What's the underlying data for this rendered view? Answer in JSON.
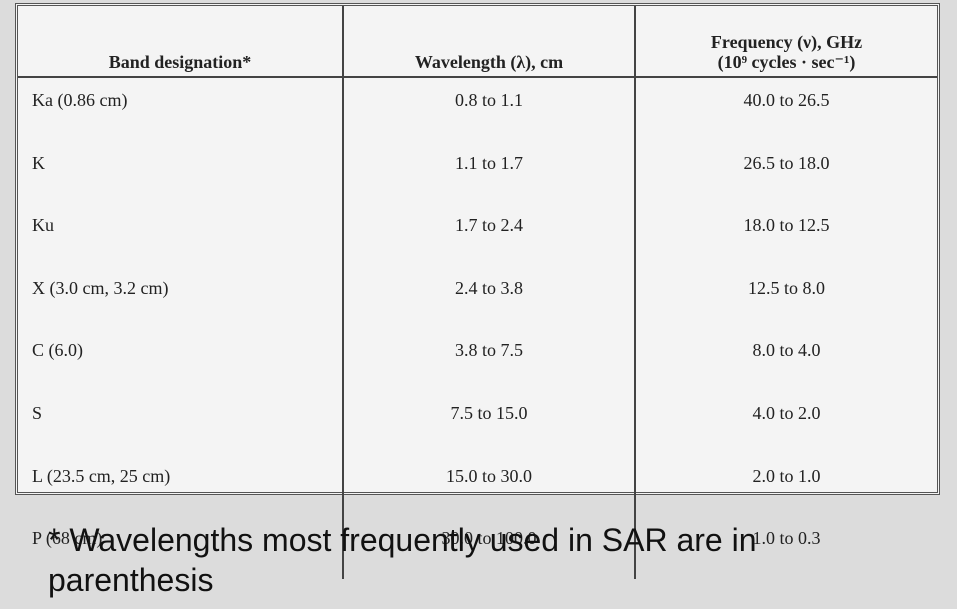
{
  "table": {
    "headers": {
      "band": "Band designation*",
      "wavelength": "Wavelength (λ), cm",
      "frequency_line1": "Frequency (ν), GHz",
      "frequency_line2": "(10⁹ cycles · sec⁻¹)"
    },
    "rows": [
      {
        "band": "Ka (0.86 cm)",
        "wavelength": "0.8 to 1.1",
        "frequency": "40.0 to 26.5"
      },
      {
        "band": "K",
        "wavelength": "1.1 to 1.7",
        "frequency": "26.5 to 18.0"
      },
      {
        "band": "Ku",
        "wavelength": "1.7 to 2.4",
        "frequency": "18.0 to 12.5"
      },
      {
        "band": "X (3.0 cm, 3.2 cm)",
        "wavelength": "2.4 to 3.8",
        "frequency": "12.5 to 8.0"
      },
      {
        "band": "C (6.0)",
        "wavelength": "3.8 to 7.5",
        "frequency": "8.0 to 4.0"
      },
      {
        "band": "S",
        "wavelength": "7.5 to 15.0",
        "frequency": "4.0 to 2.0"
      },
      {
        "band": "L (23.5 cm, 25 cm)",
        "wavelength": "15.0 to 30.0",
        "frequency": "2.0 to 1.0"
      },
      {
        "band": "P (68 cm)",
        "wavelength": "30.0 to 100.0",
        "frequency": "1.0 to 0.3"
      }
    ]
  },
  "footnote": "* Wavelengths most frequently used in SAR are in parenthesis"
}
